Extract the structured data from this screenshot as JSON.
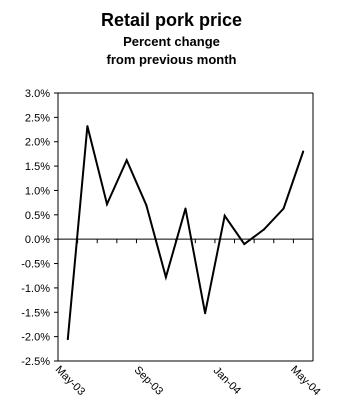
{
  "chart_data": {
    "type": "line",
    "title": "Retail pork price",
    "subtitle_lines": [
      "Percent change",
      "from previous month"
    ],
    "x": [
      "May-03",
      "Jun-03",
      "Jul-03",
      "Aug-03",
      "Sep-03",
      "Oct-03",
      "Nov-03",
      "Dec-03",
      "Jan-04",
      "Feb-04",
      "Mar-04",
      "Apr-04",
      "May-04"
    ],
    "x_tick_labels": [
      "May-03",
      "Sep-03",
      "Jan-04",
      "May-04"
    ],
    "series": [
      {
        "values": [
          -2.05,
          2.32,
          0.72,
          1.62,
          0.7,
          -0.78,
          0.63,
          -1.52,
          0.48,
          -0.1,
          0.2,
          0.63,
          1.8
        ]
      }
    ],
    "y_ticks": [
      "3.0%",
      "2.5%",
      "2.0%",
      "1.5%",
      "1.0%",
      "0.5%",
      "0.0%",
      "-0.5%",
      "-1.0%",
      "-1.5%",
      "-2.0%",
      "-2.5%"
    ],
    "ylim": [
      -2.5,
      3.0
    ],
    "y_unit": "%",
    "grid": false,
    "line_color": "#000000"
  }
}
